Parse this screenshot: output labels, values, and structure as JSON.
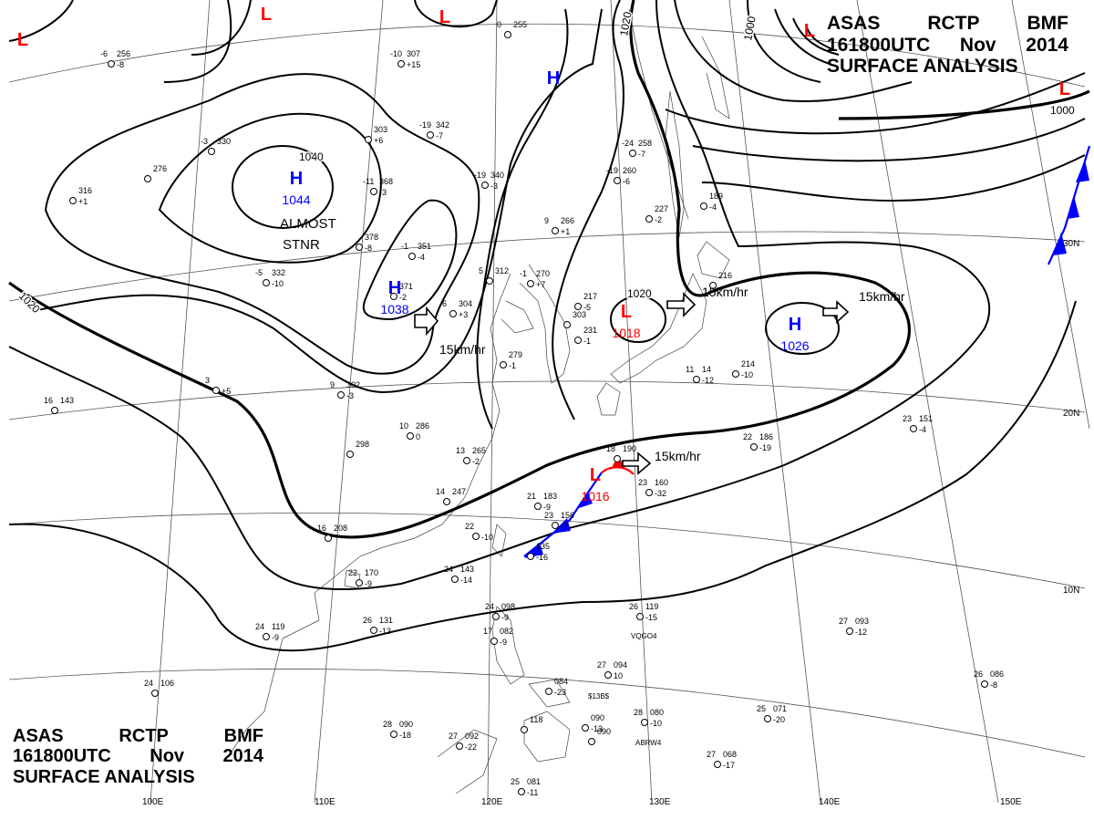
{
  "header": {
    "agency": [
      "ASAS",
      "RCTP",
      "BMF"
    ],
    "valid": [
      "161800UTC",
      "Nov",
      "2014"
    ],
    "product": "SURFACE ANALYSIS"
  },
  "colors": {
    "high": "#0000ff",
    "low": "#ff0000",
    "isobar": "#000000",
    "grid": "#555555",
    "coast": "#444444",
    "cold_front": "#0000ff",
    "warm_front": "#ff0000"
  },
  "longitude_labels": [
    "100E",
    "110E",
    "120E",
    "130E",
    "140E",
    "150E"
  ],
  "latitude_labels": [
    "30N",
    "20N",
    "10N"
  ],
  "isobar_labels": [
    "1040",
    "1020",
    "1020",
    "1020",
    "1000",
    "1000"
  ],
  "pressure_centers": [
    {
      "type": "H",
      "value": "1044",
      "color": "#0000ff"
    },
    {
      "type": "H",
      "value": "1038",
      "color": "#0000ff"
    },
    {
      "type": "H",
      "value": "",
      "color": "#0000ff"
    },
    {
      "type": "L",
      "value": "1018",
      "color": "#ff0000"
    },
    {
      "type": "H",
      "value": "1026",
      "color": "#0000ff"
    },
    {
      "type": "L",
      "value": "1016",
      "color": "#ff0000"
    },
    {
      "type": "L",
      "value": "",
      "color": "#ff0000"
    },
    {
      "type": "L",
      "value": "",
      "color": "#ff0000"
    },
    {
      "type": "L",
      "value": "",
      "color": "#ff0000"
    },
    {
      "type": "L",
      "value": "",
      "color": "#ff0000"
    },
    {
      "type": "L",
      "value": "",
      "color": "#ff0000"
    }
  ],
  "annotations": {
    "stationary": "ALMOST\nSTNR",
    "motions": [
      "15km/hr",
      "15km/hr",
      "15km/hr",
      "15km/hr"
    ]
  },
  "station_reports": [
    {
      "t": "-6",
      "p": "256",
      "d": "-8"
    },
    {
      "t": "-10",
      "p": "307",
      "d": "+15"
    },
    {
      "t": "0",
      "p": "255",
      "d": ""
    },
    {
      "t": "",
      "p": "303",
      "d": "+6"
    },
    {
      "t": "-19",
      "p": "342",
      "d": "-7"
    },
    {
      "t": "-3",
      "p": "330",
      "d": ""
    },
    {
      "t": "",
      "p": "276",
      "d": ""
    },
    {
      "t": "",
      "p": "316",
      "d": "+1"
    },
    {
      "t": "-11",
      "p": "368",
      "d": "-3"
    },
    {
      "t": "-19",
      "p": "340",
      "d": "-3"
    },
    {
      "t": "-24",
      "p": "258",
      "d": "-7"
    },
    {
      "t": "-19",
      "p": "260",
      "d": "-6"
    },
    {
      "t": "",
      "p": "189",
      "d": "-4"
    },
    {
      "t": "",
      "p": "227",
      "d": "-2"
    },
    {
      "t": "",
      "p": "378",
      "d": "-8"
    },
    {
      "t": "-1",
      "p": "351",
      "d": "-4"
    },
    {
      "t": "9",
      "p": "266",
      "d": "+1"
    },
    {
      "t": "-5",
      "p": "332",
      "d": "-10"
    },
    {
      "t": "",
      "p": "371",
      "d": "-2"
    },
    {
      "t": "5",
      "p": "312",
      "d": ""
    },
    {
      "t": "-1",
      "p": "270",
      "d": "+7"
    },
    {
      "t": "6",
      "p": "304",
      "d": "+3"
    },
    {
      "t": "",
      "p": "217",
      "d": "-5"
    },
    {
      "t": "",
      "p": "216",
      "d": ""
    },
    {
      "t": "",
      "p": "303",
      "d": ""
    },
    {
      "t": "",
      "p": "279",
      "d": "-1"
    },
    {
      "t": "",
      "p": "231",
      "d": "-1"
    },
    {
      "t": "",
      "p": "214",
      "d": "-10"
    },
    {
      "t": "11",
      "p": "14",
      "d": "-12"
    },
    {
      "t": "3",
      "p": "",
      "d": "+5"
    },
    {
      "t": "9",
      "p": "302",
      "d": "-3"
    },
    {
      "t": "16",
      "p": "143",
      "d": ""
    },
    {
      "t": "10",
      "p": "286",
      "d": "0"
    },
    {
      "t": "",
      "p": "298",
      "d": ""
    },
    {
      "t": "13",
      "p": "265",
      "d": "-2"
    },
    {
      "t": "18",
      "p": "190",
      "d": ""
    },
    {
      "t": "22",
      "p": "186",
      "d": "-19"
    },
    {
      "t": "23",
      "p": "151",
      "d": "-4"
    },
    {
      "t": "14",
      "p": "247",
      "d": ""
    },
    {
      "t": "21",
      "p": "183",
      "d": "-9"
    },
    {
      "t": "23",
      "p": "160",
      "d": "-32"
    },
    {
      "t": "16",
      "p": "208",
      "d": ""
    },
    {
      "t": "22",
      "p": "",
      "d": "-10"
    },
    {
      "t": "23",
      "p": "156",
      "d": "-7"
    },
    {
      "t": "",
      "p": "135",
      "d": "-16"
    },
    {
      "t": "22",
      "p": "170",
      "d": "-9"
    },
    {
      "t": "24",
      "p": "143",
      "d": "-14"
    },
    {
      "t": "24",
      "p": "098",
      "d": "-9"
    },
    {
      "t": "26",
      "p": "131",
      "d": "-13"
    },
    {
      "t": "24",
      "p": "119",
      "d": "-9"
    },
    {
      "t": "17",
      "p": "082",
      "d": "-9"
    },
    {
      "t": "26",
      "p": "119",
      "d": "-15"
    },
    {
      "t": "27",
      "p": "093",
      "d": "-12"
    },
    {
      "t": "",
      "p": "090",
      "d": "-13"
    },
    {
      "t": "27",
      "p": "094",
      "d": "10"
    },
    {
      "t": "",
      "p": "084",
      "d": "-23"
    },
    {
      "t": "24",
      "p": "106",
      "d": ""
    },
    {
      "t": "28",
      "p": "090",
      "d": "-18"
    },
    {
      "t": "27",
      "p": "092",
      "d": "-22"
    },
    {
      "t": "",
      "p": "118",
      "d": ""
    },
    {
      "t": "",
      "p": "090",
      "d": ""
    },
    {
      "t": "28",
      "p": "080",
      "d": "-10"
    },
    {
      "t": "25",
      "p": "071",
      "d": "-20"
    },
    {
      "t": "27",
      "p": "068",
      "d": "-17"
    },
    {
      "t": "26",
      "p": "086",
      "d": "-8"
    },
    {
      "t": "25",
      "p": "081",
      "d": "-11"
    }
  ],
  "ship_ids": [
    "VQGO4",
    "ABRW4",
    "$13B$"
  ]
}
